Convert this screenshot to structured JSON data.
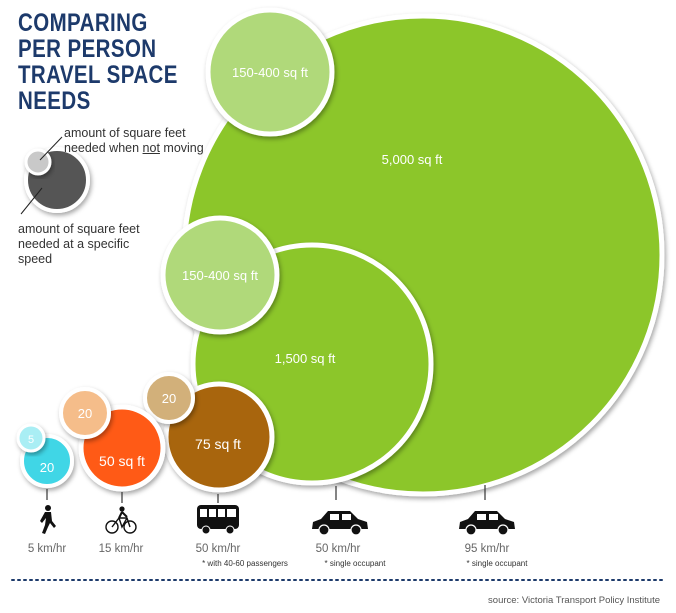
{
  "title_lines": [
    "COMPARING",
    "PER PERSON",
    "TRAVEL SPACE",
    "NEEDS"
  ],
  "legend": {
    "small_prefix": "amount of square feet needed when ",
    "small_emph": "not",
    "small_suffix": " moving",
    "large": "amount of square feet needed at a specific speed"
  },
  "source": "source: Victoria Transport Policy Institute",
  "colors": {
    "title": "#1d3a6b",
    "pedestrian": "#3fd6e6",
    "bicycle": "#ff5a14",
    "bus": "#a8650f",
    "car": "#8cc629",
    "stopped_ped": "#a9eef4",
    "stopped_bike": "#f5bd8a",
    "stopped_bus": "#d2b07a",
    "stopped_car": "#b0d97a"
  },
  "chart_data": {
    "type": "bubble",
    "unit": "sq ft",
    "categories": [
      {
        "mode": "pedestrian",
        "icon": "walking-person-icon",
        "speed": "5 km/hr",
        "note": "",
        "stopped_label": "5",
        "moving_label": "20"
      },
      {
        "mode": "bicycle",
        "icon": "bicycle-icon",
        "speed": "15 km/hr",
        "note": "",
        "stopped_label": "20",
        "moving_label": "50 sq ft"
      },
      {
        "mode": "bus",
        "icon": "bus-icon",
        "speed": "50 km/hr",
        "note": "* with 40-60 passengers",
        "stopped_label": "20",
        "moving_label": "75 sq ft"
      },
      {
        "mode": "car",
        "icon": "car-icon",
        "speed": "50 km/hr",
        "note": "* single occupant",
        "stopped_label": "150-400 sq ft",
        "moving_label": "1,500 sq ft"
      },
      {
        "mode": "car",
        "icon": "car-icon",
        "speed": "95 km/hr",
        "note": "* single occupant",
        "stopped_label": "150-400 sq ft",
        "moving_label": "5,000 sq ft"
      }
    ]
  }
}
